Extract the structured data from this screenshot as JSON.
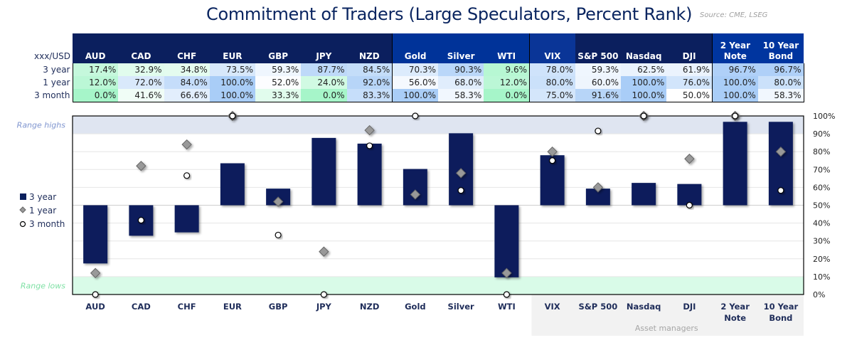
{
  "title": "Commitment of Traders (Large Speculators, Percent Rank)",
  "source": "Source: CME, LSEG",
  "table": {
    "corner_label": "xxx/USD",
    "columns": [
      "AUD",
      "CAD",
      "CHF",
      "EUR",
      "GBP",
      "JPY",
      "NZD",
      "Gold",
      "Silver",
      "WTI",
      "VIX",
      "S&P 500",
      "Nasdaq",
      "DJI",
      "2 Year Note",
      "10 Year Bond"
    ],
    "rows": [
      {
        "label": "3 year",
        "values": [
          "17.4%",
          "32.9%",
          "34.8%",
          "73.5%",
          "59.3%",
          "87.7%",
          "84.5%",
          "70.3%",
          "90.3%",
          "9.6%",
          "78.0%",
          "59.3%",
          "62.5%",
          "61.9%",
          "96.7%",
          "96.7%"
        ]
      },
      {
        "label": "1 year",
        "values": [
          "12.0%",
          "72.0%",
          "84.0%",
          "100.0%",
          "52.0%",
          "24.0%",
          "92.0%",
          "56.0%",
          "68.0%",
          "12.0%",
          "80.0%",
          "60.0%",
          "100.0%",
          "76.0%",
          "100.0%",
          "80.0%"
        ]
      },
      {
        "label": "3 month",
        "values": [
          "0.0%",
          "41.6%",
          "66.6%",
          "100.0%",
          "33.3%",
          "0.0%",
          "83.3%",
          "100.0%",
          "58.3%",
          "0.0%",
          "75.0%",
          "91.6%",
          "100.0%",
          "50.0%",
          "100.0%",
          "58.3%"
        ]
      }
    ],
    "header_colors": [
      "#0b1f5e",
      "#0b1f5e",
      "#0b1f5e",
      "#0b1f5e",
      "#0b1f5e",
      "#0b1f5e",
      "#0b1f5e",
      "#003399",
      "#003399",
      "#003399",
      "#0a3597",
      "#0b1f5e",
      "#0b1f5e",
      "#0b1f5e",
      "#00359f",
      "#00359f"
    ],
    "low_color": "#a6f5c9",
    "high_color": "#a9cdf7"
  },
  "chart_data": {
    "type": "bar",
    "categories": [
      "AUD",
      "CAD",
      "CHF",
      "EUR",
      "GBP",
      "JPY",
      "NZD",
      "Gold",
      "Silver",
      "WTI",
      "VIX",
      "S&P 500",
      "Nasdaq",
      "DJI",
      "2 Year Note",
      "10 Year Bond"
    ],
    "bar_baseline": 50,
    "series": [
      {
        "name": "3 year",
        "kind": "bar",
        "color": "#0a1f5c",
        "values": [
          17.4,
          32.9,
          34.8,
          73.5,
          59.3,
          87.7,
          84.5,
          70.3,
          90.3,
          9.6,
          78.0,
          59.3,
          62.5,
          61.9,
          96.7,
          96.7
        ]
      },
      {
        "name": "1 year",
        "kind": "diamond",
        "color": "#999999",
        "values": [
          12.0,
          72.0,
          84.0,
          100.0,
          52.0,
          24.0,
          92.0,
          56.0,
          68.0,
          12.0,
          80.0,
          60.0,
          100.0,
          76.0,
          100.0,
          80.0
        ]
      },
      {
        "name": "3 month",
        "kind": "circle",
        "color": "#ffffff",
        "values": [
          0.0,
          41.6,
          66.6,
          100.0,
          33.3,
          0.0,
          83.3,
          100.0,
          58.3,
          0.0,
          75.0,
          91.6,
          100.0,
          50.0,
          100.0,
          58.3
        ]
      }
    ],
    "ylim": [
      0,
      100
    ],
    "yticks": [
      "0%",
      "10%",
      "20%",
      "30%",
      "40%",
      "50%",
      "60%",
      "70%",
      "80%",
      "90%",
      "100%"
    ],
    "grid": true,
    "legend_position": "left",
    "bands": [
      {
        "label": "Range highs",
        "from": 90,
        "to": 100,
        "color": "#dfe5f1",
        "label_color": "#7f95cf"
      },
      {
        "label": "Range lows",
        "from": 0,
        "to": 10,
        "color": "#d9fbe8",
        "label_color": "#7ee0a4"
      }
    ],
    "group_label": "Asset managers",
    "group_start_category": "VIX"
  }
}
